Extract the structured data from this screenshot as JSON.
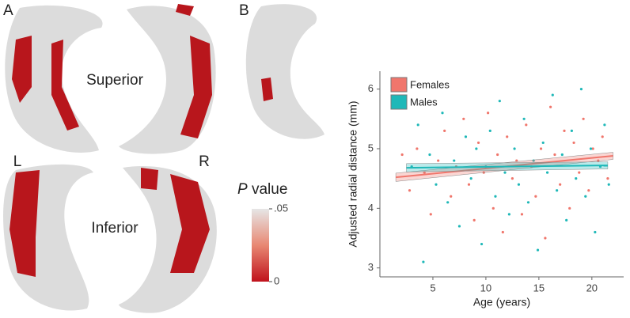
{
  "panel_labels": [
    "A",
    "B"
  ],
  "surface_labels": {
    "superior": "Superior",
    "inferior": "Inferior",
    "left": "L",
    "right": "R"
  },
  "colorbar": {
    "title_italic": "P",
    "title_rest": "value",
    "ticks": [
      {
        "value": 0.05,
        "label": ".05"
      },
      0
    ],
    "lim": [
      0,
      0.05
    ],
    "low_color": "#c0121c",
    "high_color": "#e6e6e6"
  },
  "chart_data": {
    "type": "scatter",
    "xlabel": "Age (years)",
    "ylabel": "Adjusted radial distance (mm)",
    "xlim": [
      0,
      23
    ],
    "ylim": [
      2.85,
      6.3
    ],
    "xticks": [
      5,
      10,
      15,
      20
    ],
    "yticks": [
      3,
      4,
      5,
      6
    ],
    "legend": "top-left",
    "series": [
      {
        "name": "Females",
        "color": "#f0766c",
        "x": [
          2.1,
          2.8,
          3.5,
          4.2,
          4.8,
          5.5,
          6.1,
          6.7,
          7.2,
          7.9,
          8.4,
          8.9,
          9.3,
          9.8,
          10.2,
          10.7,
          11.1,
          11.6,
          12.0,
          12.5,
          12.9,
          13.4,
          13.8,
          14.3,
          14.7,
          15.2,
          15.6,
          16.1,
          16.5,
          17.0,
          17.4,
          17.9,
          18.3,
          18.8,
          19.2,
          19.7,
          20.1,
          20.6,
          21.0,
          21.5
        ],
        "y": [
          4.9,
          4.3,
          5.0,
          4.6,
          3.9,
          4.8,
          5.3,
          4.2,
          4.7,
          5.5,
          4.4,
          3.8,
          5.1,
          4.6,
          5.6,
          4.0,
          4.9,
          3.6,
          5.2,
          4.5,
          4.8,
          3.9,
          5.4,
          4.7,
          4.2,
          5.0,
          3.5,
          5.7,
          4.9,
          4.4,
          5.3,
          4.0,
          5.1,
          4.6,
          5.5,
          4.3,
          5.0,
          4.8,
          5.2,
          4.5
        ],
        "fit": {
          "x": [
            1.5,
            22
          ],
          "y": [
            4.52,
            4.88
          ],
          "lower": [
            4.45,
            4.82
          ],
          "upper": [
            4.59,
            4.94
          ]
        }
      },
      {
        "name": "Males",
        "color": "#1fb8b8",
        "x": [
          3.0,
          3.6,
          4.1,
          4.7,
          5.3,
          5.9,
          6.4,
          7.0,
          7.5,
          8.1,
          8.6,
          9.1,
          9.6,
          10.0,
          10.4,
          10.9,
          11.3,
          11.8,
          12.2,
          12.7,
          13.1,
          13.6,
          14.0,
          14.5,
          14.9,
          15.4,
          15.8,
          16.3,
          16.7,
          17.2,
          17.6,
          18.1,
          18.5,
          19.0,
          19.4,
          19.9,
          20.3,
          20.8,
          21.2,
          21.6
        ],
        "y": [
          4.7,
          5.4,
          3.1,
          4.9,
          4.4,
          5.6,
          4.1,
          4.8,
          3.7,
          5.2,
          4.5,
          5.0,
          3.4,
          4.7,
          5.3,
          4.2,
          5.8,
          4.6,
          3.9,
          5.0,
          4.4,
          5.5,
          4.1,
          4.8,
          3.3,
          5.1,
          4.6,
          5.9,
          4.3,
          4.9,
          3.8,
          5.3,
          4.5,
          6.0,
          4.2,
          5.0,
          3.6,
          4.7,
          5.4,
          4.4
        ],
        "fit": {
          "x": [
            2.5,
            21.5
          ],
          "y": [
            4.68,
            4.72
          ],
          "lower": [
            4.61,
            4.66
          ],
          "upper": [
            4.75,
            4.78
          ]
        }
      }
    ]
  }
}
